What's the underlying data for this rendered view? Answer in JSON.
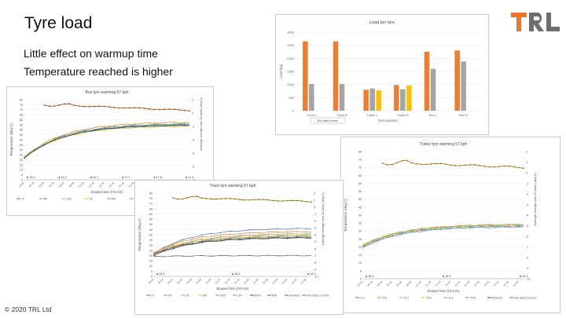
{
  "slide": {
    "title": "Tyre load",
    "bullets": [
      "Little effect on warmup time",
      "Temperature reached is higher"
    ],
    "copyright": "© 2020 TRL Ltd",
    "logo_text": "TRL",
    "colors": {
      "logo_orange": "#E57A2E",
      "logo_grey": "#6E6E6E"
    }
  },
  "chart_data": [
    {
      "type": "bar",
      "title": "Load per tyre",
      "ylabel": "Load (kg)",
      "xlabel": "Tyre position",
      "ylim": [
        0,
        3000
      ],
      "yticks": [
        "0",
        "500",
        "1000",
        "1500",
        "2000",
        "2500",
        "3000"
      ],
      "categories": [
        "Truck L",
        "Truck R",
        "Trailer L",
        "Trailer R",
        "Bus L",
        "Bus R"
      ],
      "series": [
        {
          "color": "#ED7D31",
          "values": [
            2650,
            2650,
            800,
            980,
            2250,
            2300
          ]
        },
        {
          "color": "#A5A5A5",
          "values": [
            1020,
            1020,
            850,
            820,
            1600,
            1880
          ]
        },
        {
          "color": "#FFC000",
          "values": [
            null,
            null,
            780,
            960,
            null,
            null
          ]
        }
      ],
      "legend_note": "EN rated loads"
    },
    {
      "type": "line",
      "title": "Bus tyre warming 57 kph",
      "ylabel": "Temperature (deg C)",
      "y2label": "Average change over 10 mins (deg C)",
      "xlabel": "Elapsed time (hh:mm)",
      "ylim": [
        0,
        80
      ],
      "y2lim": [
        -10,
        2
      ],
      "yticks": [
        "0",
        "5",
        "10",
        "15",
        "20",
        "25",
        "30",
        "35",
        "40",
        "45",
        "50",
        "55",
        "60",
        "65",
        "70",
        "75",
        "80"
      ],
      "y2ticks": [
        "2",
        "0",
        "-2",
        "-4",
        "-6",
        "-8",
        "-10"
      ],
      "markers": [
        "15.0",
        "16.2",
        "16.7",
        "17.2",
        "17.8",
        "17.4"
      ],
      "legend": [
        "LF",
        "RF",
        "LR1",
        "LR",
        "RR",
        "RRI",
        "RR2",
        "Av. delta 10 mins"
      ],
      "series_colors": [
        "#4472C4",
        "#ED7D31",
        "#A5A5A5",
        "#FFC000",
        "#5B9BD5",
        "#70AD47",
        "#264478",
        "#9E480E"
      ],
      "temps_start": [
        22,
        22.5,
        21.5,
        21.8,
        22.2,
        22,
        21.7
      ],
      "temps_end": [
        55,
        57.5,
        54,
        53.5,
        55.5,
        56,
        54.5
      ],
      "delta_start": 1.3,
      "delta_end": 0.4
    },
    {
      "type": "line",
      "title": "Truck tyre warming 57 kph",
      "ylabel": "Temperature (deg C)",
      "y2label": "Average change over 10 mins (deg C)",
      "xlabel": "Elapsed time (hh:mm)",
      "ylim": [
        0,
        80
      ],
      "y2lim": [
        -10,
        2
      ],
      "yticks": [
        "0",
        "5",
        "10",
        "15",
        "20",
        "25",
        "30",
        "35",
        "40",
        "45",
        "50",
        "55",
        "60",
        "65",
        "70",
        "75",
        "80"
      ],
      "y2ticks": [
        "2",
        "1",
        "0",
        "-1",
        "-2",
        "-3",
        "-4",
        "-5",
        "-6",
        "-7",
        "-8",
        "-9",
        "-10"
      ],
      "markers": [
        "18.3",
        "18.9",
        "19.3"
      ],
      "legend": [
        "LF",
        "RF",
        "LR",
        "RR",
        "LRO",
        "LRI",
        "RRO",
        "RRI",
        "Ambient",
        "Ave delta 10 mins"
      ],
      "series_colors": [
        "#4472C4",
        "#ED7D31",
        "#A5A5A5",
        "#FFC000",
        "#5B9BD5",
        "#70AD47",
        "#264478",
        "#9E480E",
        "#636363",
        "#997300"
      ],
      "temps_start": [
        22,
        22.5,
        21,
        22,
        21.5,
        20.5,
        20,
        21.5,
        19
      ],
      "temps_end": [
        46,
        43,
        41,
        40,
        39,
        38,
        37,
        37.5,
        20
      ],
      "delta_start": 1.4,
      "delta_end": 0.8
    },
    {
      "type": "line",
      "title": "Trailer tyre warming 57 kph",
      "ylabel": "Temperature (deg C)",
      "y2label": "Average change over 10 mins (deg C)",
      "xlabel": "Elapsed time (hh:mm)",
      "ylim": [
        0,
        80
      ],
      "y2lim": [
        -10,
        2
      ],
      "yticks": [
        "0",
        "5",
        "10",
        "15",
        "20",
        "25",
        "30",
        "35",
        "40",
        "45",
        "50",
        "55",
        "60",
        "65",
        "70",
        "75",
        "80"
      ],
      "y2ticks": [
        "2",
        "1",
        "0",
        "-1",
        "-2",
        "-3",
        "-4",
        "-5",
        "-6",
        "-7",
        "-8",
        "-9",
        "-10"
      ],
      "markers": [
        "18.3",
        "18.9",
        "19.3"
      ],
      "legend": [
        "TL1",
        "TR1",
        "TL2",
        "TR2",
        "TL3",
        "TR3",
        "Ambient",
        "Ave delta 10 mins"
      ],
      "series_colors": [
        "#4472C4",
        "#ED7D31",
        "#A5A5A5",
        "#FFC000",
        "#5B9BD5",
        "#70AD47",
        "#264478",
        "#997300"
      ],
      "temps_start": [
        20,
        21,
        19.5,
        20.5,
        20,
        21
      ],
      "temps_end": [
        33,
        34,
        32.5,
        33.5,
        33,
        34
      ],
      "delta_start": 1.0,
      "delta_end": 0.5
    }
  ]
}
